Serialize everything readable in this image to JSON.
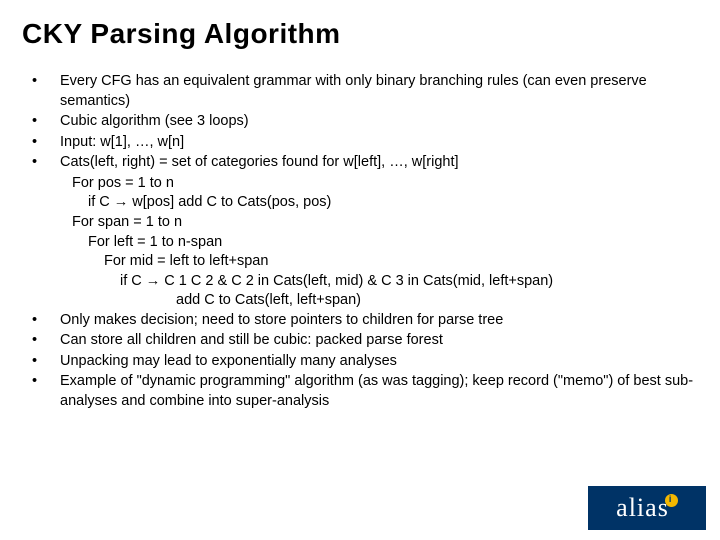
{
  "title": "CKY Parsing Algorithm",
  "bullets": [
    {
      "text": "Every CFG has an equivalent grammar with only binary branching rules (can even preserve semantics)"
    },
    {
      "text": "Cubic algorithm (see 3 loops)"
    },
    {
      "text": "Input: w[1], …, w[n]"
    },
    {
      "text": "Cats(left, right) = set of categories found for w[left], …, w[right]"
    }
  ],
  "algo": {
    "l1": "For pos = 1 to n",
    "l2": "if C → w[pos]   add C to Cats(pos, pos)",
    "l3": "For span = 1 to n",
    "l4": "For left = 1 to n-span",
    "l5": "For mid = left to left+span",
    "l6": "if C → C 1 C 2 & C 2 in Cats(left, mid) & C 3 in Cats(mid, left+span)",
    "l7": "add C to Cats(left, left+span)"
  },
  "bullets2": [
    {
      "text": "Only makes decision; need to store pointers to children for parse tree"
    },
    {
      "text": "Can store all children and still be cubic: packed parse forest"
    },
    {
      "text": "Unpacking may lead to exponentially many analyses"
    },
    {
      "text": "Example of \"dynamic programming\" algorithm (as was tagging); keep record (\"memo\") of best sub-analyses and combine into super-analysis"
    }
  ],
  "logo": {
    "text": "alias"
  },
  "colors": {
    "background": "#ffffff",
    "text": "#000000",
    "logo_bg": "#003366",
    "logo_text": "#ffffff",
    "logo_accent": "#f5b800"
  },
  "fonts": {
    "title_size_pt": 28,
    "body_size_pt": 14.5,
    "title_weight": "bold",
    "body_weight": "normal"
  }
}
